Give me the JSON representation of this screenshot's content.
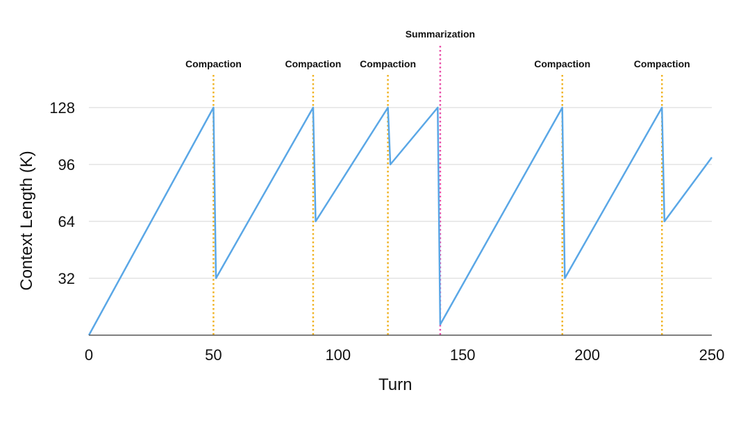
{
  "chart_data": {
    "type": "line",
    "title": "",
    "xlabel": "Turn",
    "ylabel": "Context Length (K)",
    "xlim": [
      0,
      250
    ],
    "ylim": [
      0,
      128
    ],
    "x_ticks": [
      0,
      50,
      100,
      150,
      200,
      250
    ],
    "y_ticks": [
      32,
      64,
      96,
      128
    ],
    "grid": "horizontal",
    "legend": "none",
    "series": [
      {
        "color": "#5aa7e6",
        "x": [
          0,
          50,
          51,
          90,
          91,
          120,
          121,
          140,
          141,
          190,
          191,
          230,
          231,
          250
        ],
        "y": [
          0,
          128,
          32,
          128,
          64,
          128,
          96,
          128,
          6,
          128,
          32,
          128,
          64,
          100
        ]
      }
    ],
    "annotations": [
      {
        "label": "Compaction",
        "x": 50,
        "color": "#f0b323",
        "style": "dotted"
      },
      {
        "label": "Compaction",
        "x": 90,
        "color": "#f0b323",
        "style": "dotted"
      },
      {
        "label": "Compaction",
        "x": 120,
        "color": "#f0b323",
        "style": "dotted"
      },
      {
        "label": "Summarization",
        "x": 141,
        "color": "#e84fa8",
        "style": "dotted"
      },
      {
        "label": "Compaction",
        "x": 190,
        "color": "#f0b323",
        "style": "dotted"
      },
      {
        "label": "Compaction",
        "x": 230,
        "color": "#f0b323",
        "style": "dotted"
      }
    ],
    "gridline_color": "#d4d4d4",
    "axis_color": "#555555"
  }
}
